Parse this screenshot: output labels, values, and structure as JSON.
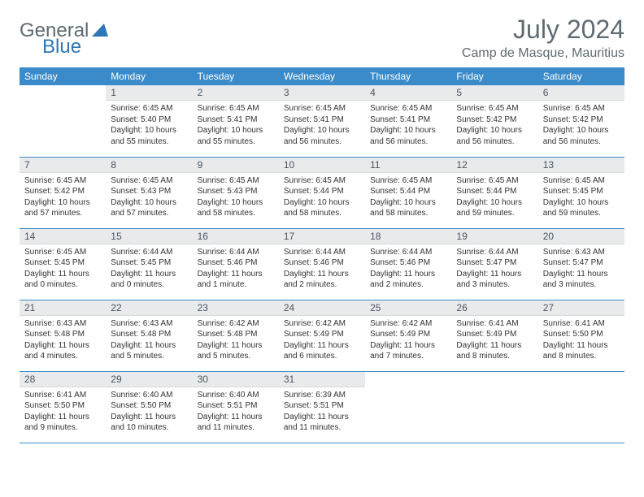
{
  "logo": {
    "part1": "General",
    "part2": "Blue"
  },
  "title": "July 2024",
  "location": "Camp de Masque, Mauritius",
  "colors": {
    "header_bg": "#3b8bca",
    "header_text": "#ffffff",
    "daynum_bg": "#e9eaec",
    "daynum_text": "#4a5560",
    "body_text": "#333333",
    "rule": "#3b8bca",
    "title_text": "#5f6b72"
  },
  "daysOfWeek": [
    "Sunday",
    "Monday",
    "Tuesday",
    "Wednesday",
    "Thursday",
    "Friday",
    "Saturday"
  ],
  "weeks": [
    [
      null,
      {
        "n": "1",
        "sr": "Sunrise: 6:45 AM",
        "ss": "Sunset: 5:40 PM",
        "d1": "Daylight: 10 hours",
        "d2": "and 55 minutes."
      },
      {
        "n": "2",
        "sr": "Sunrise: 6:45 AM",
        "ss": "Sunset: 5:41 PM",
        "d1": "Daylight: 10 hours",
        "d2": "and 55 minutes."
      },
      {
        "n": "3",
        "sr": "Sunrise: 6:45 AM",
        "ss": "Sunset: 5:41 PM",
        "d1": "Daylight: 10 hours",
        "d2": "and 56 minutes."
      },
      {
        "n": "4",
        "sr": "Sunrise: 6:45 AM",
        "ss": "Sunset: 5:41 PM",
        "d1": "Daylight: 10 hours",
        "d2": "and 56 minutes."
      },
      {
        "n": "5",
        "sr": "Sunrise: 6:45 AM",
        "ss": "Sunset: 5:42 PM",
        "d1": "Daylight: 10 hours",
        "d2": "and 56 minutes."
      },
      {
        "n": "6",
        "sr": "Sunrise: 6:45 AM",
        "ss": "Sunset: 5:42 PM",
        "d1": "Daylight: 10 hours",
        "d2": "and 56 minutes."
      }
    ],
    [
      {
        "n": "7",
        "sr": "Sunrise: 6:45 AM",
        "ss": "Sunset: 5:42 PM",
        "d1": "Daylight: 10 hours",
        "d2": "and 57 minutes."
      },
      {
        "n": "8",
        "sr": "Sunrise: 6:45 AM",
        "ss": "Sunset: 5:43 PM",
        "d1": "Daylight: 10 hours",
        "d2": "and 57 minutes."
      },
      {
        "n": "9",
        "sr": "Sunrise: 6:45 AM",
        "ss": "Sunset: 5:43 PM",
        "d1": "Daylight: 10 hours",
        "d2": "and 58 minutes."
      },
      {
        "n": "10",
        "sr": "Sunrise: 6:45 AM",
        "ss": "Sunset: 5:44 PM",
        "d1": "Daylight: 10 hours",
        "d2": "and 58 minutes."
      },
      {
        "n": "11",
        "sr": "Sunrise: 6:45 AM",
        "ss": "Sunset: 5:44 PM",
        "d1": "Daylight: 10 hours",
        "d2": "and 58 minutes."
      },
      {
        "n": "12",
        "sr": "Sunrise: 6:45 AM",
        "ss": "Sunset: 5:44 PM",
        "d1": "Daylight: 10 hours",
        "d2": "and 59 minutes."
      },
      {
        "n": "13",
        "sr": "Sunrise: 6:45 AM",
        "ss": "Sunset: 5:45 PM",
        "d1": "Daylight: 10 hours",
        "d2": "and 59 minutes."
      }
    ],
    [
      {
        "n": "14",
        "sr": "Sunrise: 6:45 AM",
        "ss": "Sunset: 5:45 PM",
        "d1": "Daylight: 11 hours",
        "d2": "and 0 minutes."
      },
      {
        "n": "15",
        "sr": "Sunrise: 6:44 AM",
        "ss": "Sunset: 5:45 PM",
        "d1": "Daylight: 11 hours",
        "d2": "and 0 minutes."
      },
      {
        "n": "16",
        "sr": "Sunrise: 6:44 AM",
        "ss": "Sunset: 5:46 PM",
        "d1": "Daylight: 11 hours",
        "d2": "and 1 minute."
      },
      {
        "n": "17",
        "sr": "Sunrise: 6:44 AM",
        "ss": "Sunset: 5:46 PM",
        "d1": "Daylight: 11 hours",
        "d2": "and 2 minutes."
      },
      {
        "n": "18",
        "sr": "Sunrise: 6:44 AM",
        "ss": "Sunset: 5:46 PM",
        "d1": "Daylight: 11 hours",
        "d2": "and 2 minutes."
      },
      {
        "n": "19",
        "sr": "Sunrise: 6:44 AM",
        "ss": "Sunset: 5:47 PM",
        "d1": "Daylight: 11 hours",
        "d2": "and 3 minutes."
      },
      {
        "n": "20",
        "sr": "Sunrise: 6:43 AM",
        "ss": "Sunset: 5:47 PM",
        "d1": "Daylight: 11 hours",
        "d2": "and 3 minutes."
      }
    ],
    [
      {
        "n": "21",
        "sr": "Sunrise: 6:43 AM",
        "ss": "Sunset: 5:48 PM",
        "d1": "Daylight: 11 hours",
        "d2": "and 4 minutes."
      },
      {
        "n": "22",
        "sr": "Sunrise: 6:43 AM",
        "ss": "Sunset: 5:48 PM",
        "d1": "Daylight: 11 hours",
        "d2": "and 5 minutes."
      },
      {
        "n": "23",
        "sr": "Sunrise: 6:42 AM",
        "ss": "Sunset: 5:48 PM",
        "d1": "Daylight: 11 hours",
        "d2": "and 5 minutes."
      },
      {
        "n": "24",
        "sr": "Sunrise: 6:42 AM",
        "ss": "Sunset: 5:49 PM",
        "d1": "Daylight: 11 hours",
        "d2": "and 6 minutes."
      },
      {
        "n": "25",
        "sr": "Sunrise: 6:42 AM",
        "ss": "Sunset: 5:49 PM",
        "d1": "Daylight: 11 hours",
        "d2": "and 7 minutes."
      },
      {
        "n": "26",
        "sr": "Sunrise: 6:41 AM",
        "ss": "Sunset: 5:49 PM",
        "d1": "Daylight: 11 hours",
        "d2": "and 8 minutes."
      },
      {
        "n": "27",
        "sr": "Sunrise: 6:41 AM",
        "ss": "Sunset: 5:50 PM",
        "d1": "Daylight: 11 hours",
        "d2": "and 8 minutes."
      }
    ],
    [
      {
        "n": "28",
        "sr": "Sunrise: 6:41 AM",
        "ss": "Sunset: 5:50 PM",
        "d1": "Daylight: 11 hours",
        "d2": "and 9 minutes."
      },
      {
        "n": "29",
        "sr": "Sunrise: 6:40 AM",
        "ss": "Sunset: 5:50 PM",
        "d1": "Daylight: 11 hours",
        "d2": "and 10 minutes."
      },
      {
        "n": "30",
        "sr": "Sunrise: 6:40 AM",
        "ss": "Sunset: 5:51 PM",
        "d1": "Daylight: 11 hours",
        "d2": "and 11 minutes."
      },
      {
        "n": "31",
        "sr": "Sunrise: 6:39 AM",
        "ss": "Sunset: 5:51 PM",
        "d1": "Daylight: 11 hours",
        "d2": "and 11 minutes."
      },
      null,
      null,
      null
    ]
  ]
}
